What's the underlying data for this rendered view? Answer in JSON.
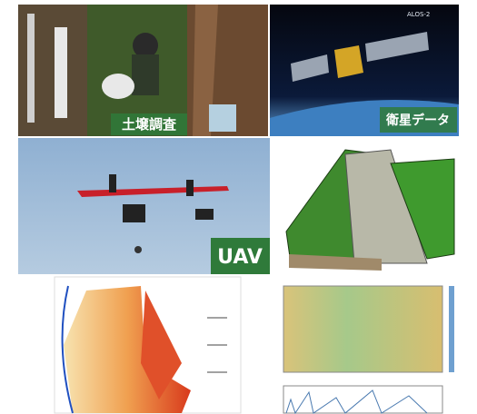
{
  "panels": [
    {
      "label": "土壌調査"
    },
    {
      "label": "衛星データ",
      "caption": "ALOS-2"
    },
    {
      "label": "UAV"
    }
  ]
}
